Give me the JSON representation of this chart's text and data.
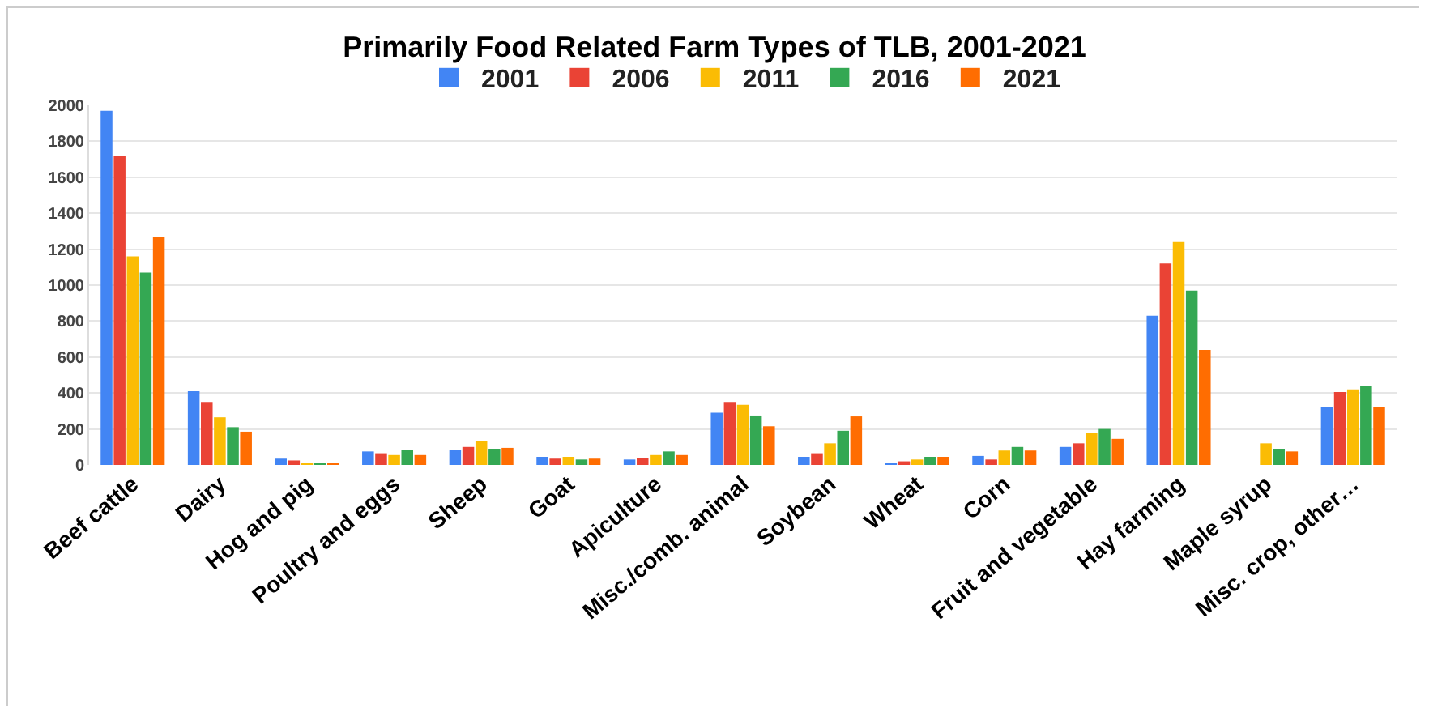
{
  "chart_data": {
    "type": "bar",
    "title": "Primarily Food Related Farm Types of TLB, 2001-2021",
    "categories": [
      "Beef cattle",
      "Dairy",
      "Hog and pig",
      "Poultry and eggs",
      "Sheep",
      "Goat",
      "Apiculture",
      "Misc./comb. animal",
      "Soybean",
      "Wheat",
      "Corn",
      "Fruit and vegetable",
      "Hay farming",
      "Maple syrup",
      "Misc. crop, other…"
    ],
    "series": [
      {
        "name": "2001",
        "color": "#4285f4",
        "values": [
          1970,
          410,
          35,
          75,
          85,
          45,
          30,
          290,
          45,
          5,
          50,
          100,
          830,
          null,
          320
        ]
      },
      {
        "name": "2006",
        "color": "#ea4335",
        "values": [
          1720,
          350,
          25,
          65,
          100,
          35,
          40,
          350,
          65,
          20,
          30,
          120,
          1120,
          null,
          405
        ]
      },
      {
        "name": "2011",
        "color": "#fbbc04",
        "values": [
          1160,
          265,
          5,
          55,
          135,
          45,
          55,
          335,
          120,
          30,
          80,
          180,
          1240,
          120,
          420
        ]
      },
      {
        "name": "2016",
        "color": "#34a853",
        "values": [
          1070,
          210,
          5,
          85,
          90,
          30,
          75,
          275,
          190,
          45,
          100,
          200,
          970,
          90,
          440
        ]
      },
      {
        "name": "2021",
        "color": "#ff6d01",
        "values": [
          1270,
          185,
          5,
          55,
          95,
          35,
          55,
          215,
          270,
          45,
          80,
          145,
          640,
          75,
          320
        ]
      }
    ],
    "ylim": [
      0,
      2000
    ],
    "yticks": [
      0,
      200,
      400,
      600,
      800,
      1000,
      1200,
      1400,
      1600,
      1800,
      2000
    ],
    "grid": "y",
    "legend": "top"
  }
}
